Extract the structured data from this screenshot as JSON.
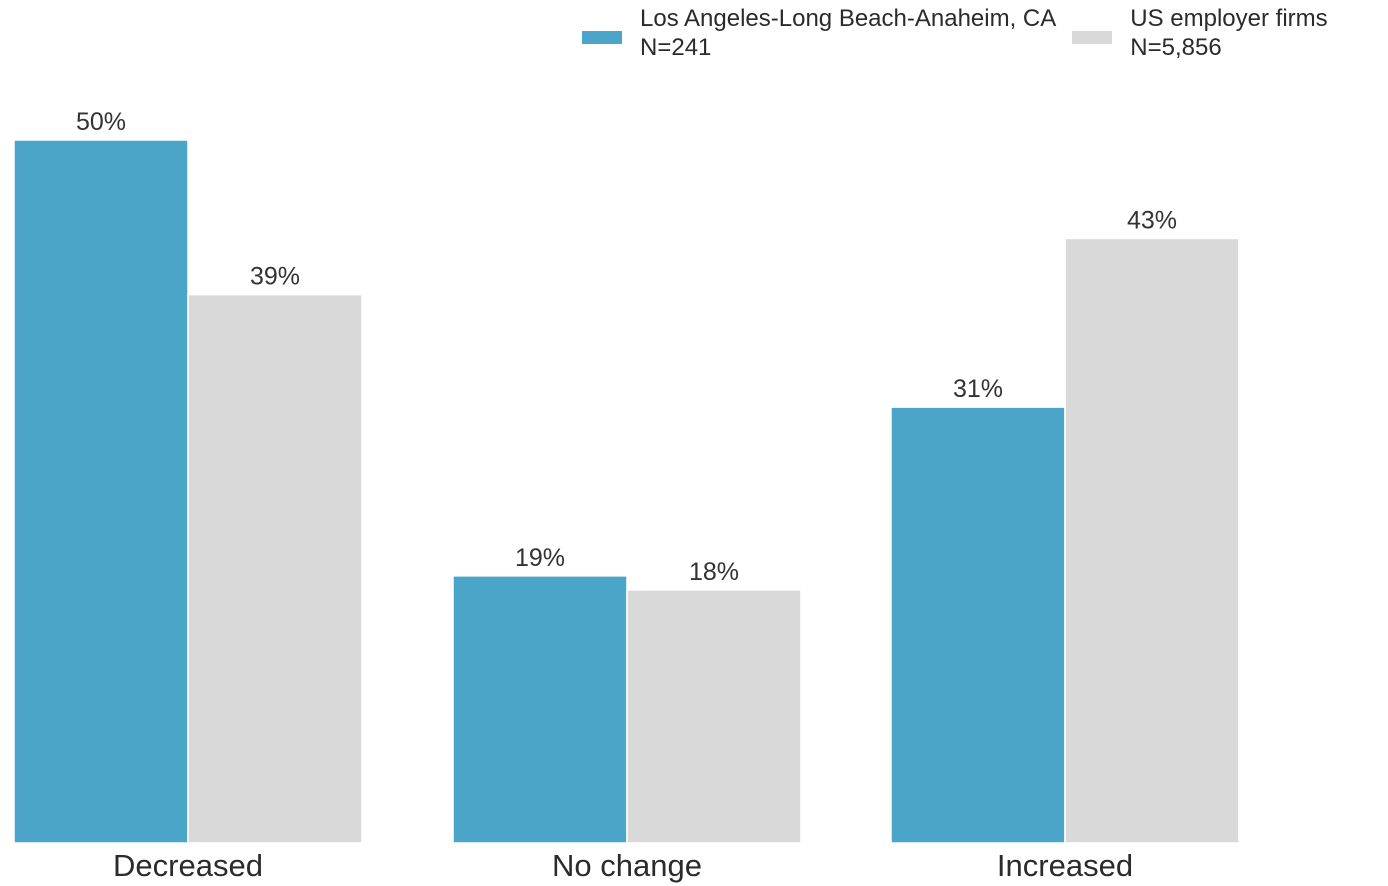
{
  "colors": {
    "series_1": "#4ba5c8",
    "series_2": "#d9d9d9"
  },
  "legend": {
    "items": [
      {
        "name": "Los Angeles-Long Beach-Anaheim, CA",
        "n": "N=241",
        "color": "#4ba5c8"
      },
      {
        "name": "US employer firms",
        "n": "N=5,856",
        "color": "#d9d9d9"
      }
    ]
  },
  "chart_data": {
    "type": "bar",
    "categories": [
      "Decreased",
      "No change",
      "Increased"
    ],
    "series": [
      {
        "name": "Los Angeles-Long Beach-Anaheim, CA",
        "values": [
          50,
          19,
          31
        ],
        "labels": [
          "50%",
          "19%",
          "31%"
        ]
      },
      {
        "name": "US employer firms",
        "values": [
          39,
          18,
          43
        ],
        "labels": [
          "39%",
          "18%",
          "43%"
        ]
      }
    ],
    "title": "",
    "xlabel": "",
    "ylabel": "",
    "ylim": [
      0,
      50
    ],
    "grid": false,
    "legend_position": "top-right"
  }
}
